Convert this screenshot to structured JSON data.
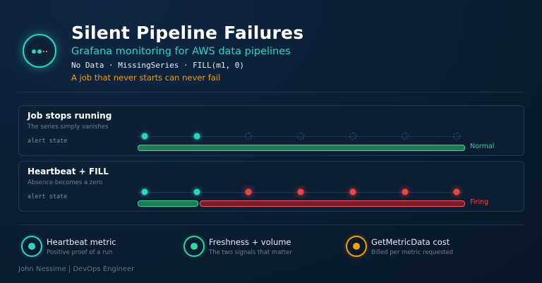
{
  "header": {
    "icon": "heartbeat-gap-icon",
    "title": "Silent Pipeline Failures",
    "subtitle": "Grafana monitoring for AWS data pipelines",
    "code_line": "No Data · MissingSeries · FILL(m1, 0)",
    "tagline": "A job that never starts can never fail"
  },
  "panels": [
    {
      "title": "Job stops running",
      "subtitle": "The series simply vanishes",
      "row_label": "alert state",
      "state": "Normal",
      "state_color": "#34d399",
      "points": [
        "present",
        "present",
        "missing",
        "missing",
        "missing",
        "missing",
        "missing"
      ],
      "state_timeline": [
        {
          "state": "normal",
          "from": 0,
          "to": 7
        }
      ]
    },
    {
      "title": "Heartbeat + FILL",
      "subtitle": "Absence becomes a zero",
      "row_label": "alert state",
      "state": "Firing",
      "state_color": "#ef4444",
      "points": [
        "present",
        "present",
        "zero",
        "zero",
        "zero",
        "zero",
        "zero"
      ],
      "state_timeline": [
        {
          "state": "normal",
          "from": 0,
          "to": 2
        },
        {
          "state": "firing",
          "from": 2,
          "to": 7
        }
      ]
    }
  ],
  "legend": [
    {
      "icon": "teal-dot-icon",
      "color": "#2dd4bf",
      "title": "Heartbeat metric",
      "subtitle": "Positive proof of a run"
    },
    {
      "icon": "green-dot-icon",
      "color": "#34d399",
      "title": "Freshness + volume",
      "subtitle": "The two signals that matter"
    },
    {
      "icon": "amber-dot-icon",
      "color": "#f59e0b",
      "title": "GetMetricData cost",
      "subtitle": "Billed per metric requested"
    }
  ],
  "footer": {
    "author": "John Nessime | DevOps Engineer"
  }
}
